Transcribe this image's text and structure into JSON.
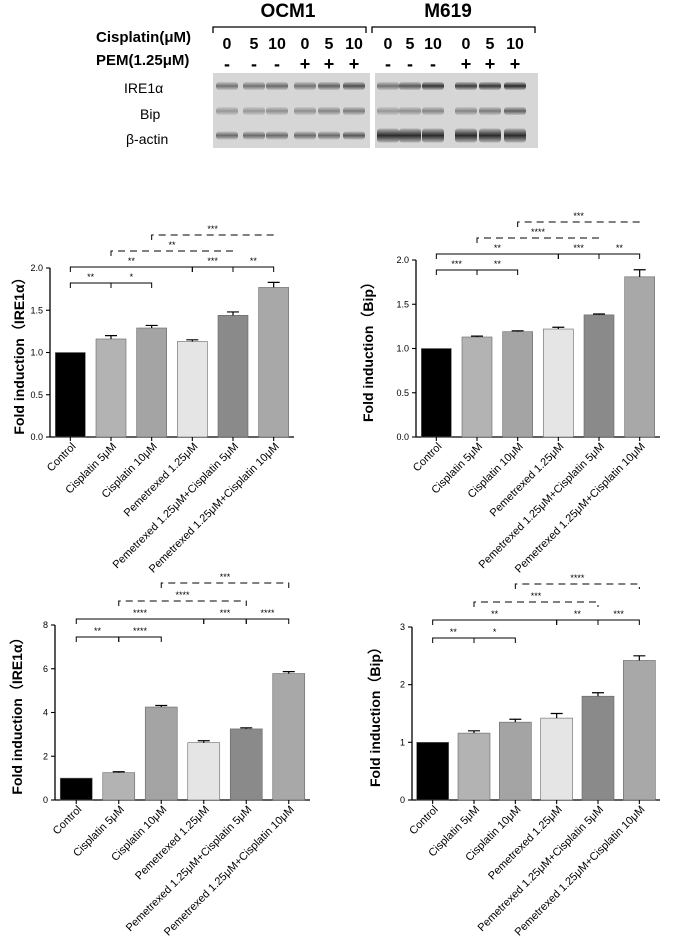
{
  "western_blot": {
    "cell_lines": [
      "OCM1",
      "M619"
    ],
    "cisplatin_label": "Cisplatin(μM)",
    "pem_label": "PEM(1.25μM)",
    "cisplatin_doses": [
      "0",
      "5",
      "10",
      "0",
      "5",
      "10",
      "0",
      "5",
      "10",
      "0",
      "5",
      "10"
    ],
    "pem_marks": [
      "-",
      "-",
      "-",
      "+",
      "+",
      "+",
      "-",
      "-",
      "-",
      "+",
      "+",
      "+"
    ],
    "proteins": [
      "IRE1α",
      "Bip",
      "β-actin"
    ]
  },
  "chart_data": [
    {
      "type": "bar",
      "ylabel": "Fold induction（IRE1α）",
      "ylim": [
        0,
        2.0
      ],
      "yticks": [
        "0.0",
        "0.5",
        "1.0",
        "1.5",
        "2.0"
      ],
      "categories": [
        "Control",
        "Cisplatin 5μM",
        "Cisplatin 10μM",
        "Pemetrexed 1.25μM",
        "Pemetrexed 1.25μM+Cisplatin 5μM",
        "Pemetrexed 1.25μM+Cisplatin 10μM"
      ],
      "values": [
        1.0,
        1.16,
        1.29,
        1.13,
        1.44,
        1.77
      ],
      "errors": [
        0.0,
        0.04,
        0.03,
        0.02,
        0.04,
        0.06
      ],
      "colors": [
        "#000000",
        "#b3b3b3",
        "#a4a4a4",
        "#e5e5e5",
        "#8a8a8a",
        "#a8a8a8"
      ],
      "comparisons": [
        {
          "from": 0,
          "to": 1,
          "label": "**",
          "tier": 0,
          "dashed": false
        },
        {
          "from": 1,
          "to": 2,
          "label": "*",
          "tier": 0,
          "dashed": false
        },
        {
          "from": 0,
          "to": 3,
          "label": "**",
          "tier": 1,
          "dashed": false
        },
        {
          "from": 3,
          "to": 4,
          "label": "***",
          "tier": 1,
          "dashed": false
        },
        {
          "from": 4,
          "to": 5,
          "label": "**",
          "tier": 1,
          "dashed": false
        },
        {
          "from": 1,
          "to": 4,
          "label": "**",
          "tier": 2,
          "dashed": true
        },
        {
          "from": 2,
          "to": 5,
          "label": "***",
          "tier": 3,
          "dashed": true
        }
      ]
    },
    {
      "type": "bar",
      "ylabel": "Fold induction（Bip）",
      "ylim": [
        0,
        2.0
      ],
      "yticks": [
        "0.0",
        "0.5",
        "1.0",
        "1.5",
        "2.0"
      ],
      "categories": [
        "Control",
        "Cisplatin 5μM",
        "Cisplatin 10μM",
        "Pemetrexed 1.25μM",
        "Pemetrexed 1.25μM+Cisplatin 5μM",
        "Pemetrexed 1.25μM+Cisplatin 10μM"
      ],
      "values": [
        1.0,
        1.13,
        1.19,
        1.22,
        1.38,
        1.81
      ],
      "errors": [
        0.0,
        0.01,
        0.01,
        0.02,
        0.01,
        0.08
      ],
      "colors": [
        "#000000",
        "#b3b3b3",
        "#a4a4a4",
        "#e5e5e5",
        "#8a8a8a",
        "#a8a8a8"
      ],
      "comparisons": [
        {
          "from": 0,
          "to": 1,
          "label": "***",
          "tier": 0,
          "dashed": false
        },
        {
          "from": 1,
          "to": 2,
          "label": "**",
          "tier": 0,
          "dashed": false
        },
        {
          "from": 0,
          "to": 3,
          "label": "**",
          "tier": 1,
          "dashed": false
        },
        {
          "from": 3,
          "to": 4,
          "label": "***",
          "tier": 1,
          "dashed": false
        },
        {
          "from": 4,
          "to": 5,
          "label": "**",
          "tier": 1,
          "dashed": false
        },
        {
          "from": 1,
          "to": 4,
          "label": "****",
          "tier": 2,
          "dashed": true
        },
        {
          "from": 2,
          "to": 5,
          "label": "***",
          "tier": 3,
          "dashed": true
        }
      ]
    },
    {
      "type": "bar",
      "ylabel": "Fold induction（IRE1α）",
      "ylim": [
        0,
        8
      ],
      "yticks": [
        "0",
        "2",
        "4",
        "6",
        "8"
      ],
      "categories": [
        "Control",
        "Cisplatin 5μM",
        "Cisplatin 10μM",
        "Pemetrexed 1.25μM",
        "Pemetrexed 1.25μM+Cisplatin 5μM",
        "Pemetrexed 1.25μM+Cisplatin 10μM"
      ],
      "values": [
        1.0,
        1.25,
        4.25,
        2.62,
        3.25,
        5.78
      ],
      "errors": [
        0.0,
        0.04,
        0.07,
        0.09,
        0.05,
        0.09
      ],
      "colors": [
        "#000000",
        "#b3b3b3",
        "#a4a4a4",
        "#e5e5e5",
        "#8a8a8a",
        "#a8a8a8"
      ],
      "comparisons": [
        {
          "from": 0,
          "to": 1,
          "label": "**",
          "tier": 0,
          "dashed": false
        },
        {
          "from": 1,
          "to": 2,
          "label": "****",
          "tier": 0,
          "dashed": false
        },
        {
          "from": 0,
          "to": 3,
          "label": "****",
          "tier": 1,
          "dashed": false
        },
        {
          "from": 3,
          "to": 4,
          "label": "***",
          "tier": 1,
          "dashed": false
        },
        {
          "from": 4,
          "to": 5,
          "label": "****",
          "tier": 1,
          "dashed": false
        },
        {
          "from": 1,
          "to": 4,
          "label": "****",
          "tier": 2,
          "dashed": true
        },
        {
          "from": 2,
          "to": 5,
          "label": "***",
          "tier": 3,
          "dashed": true
        }
      ]
    },
    {
      "type": "bar",
      "ylabel": "Fold induction（Bip）",
      "ylim": [
        0,
        3
      ],
      "yticks": [
        "0",
        "1",
        "2",
        "3"
      ],
      "categories": [
        "Control",
        "Cisplatin 5μM",
        "Cisplatin 10μM",
        "Pemetrexed 1.25μM",
        "Pemetrexed 1.25μM+Cisplatin 5μM",
        "Pemetrexed 1.25μM+Cisplatin 10μM"
      ],
      "values": [
        1.0,
        1.16,
        1.35,
        1.42,
        1.8,
        2.42
      ],
      "errors": [
        0.0,
        0.04,
        0.05,
        0.08,
        0.06,
        0.08
      ],
      "colors": [
        "#000000",
        "#b3b3b3",
        "#a4a4a4",
        "#e5e5e5",
        "#8a8a8a",
        "#a8a8a8"
      ],
      "comparisons": [
        {
          "from": 0,
          "to": 1,
          "label": "**",
          "tier": 0,
          "dashed": false
        },
        {
          "from": 1,
          "to": 2,
          "label": "*",
          "tier": 0,
          "dashed": false
        },
        {
          "from": 0,
          "to": 3,
          "label": "**",
          "tier": 1,
          "dashed": false
        },
        {
          "from": 3,
          "to": 4,
          "label": "**",
          "tier": 1,
          "dashed": false
        },
        {
          "from": 4,
          "to": 5,
          "label": "***",
          "tier": 1,
          "dashed": false
        },
        {
          "from": 1,
          "to": 4,
          "label": "***",
          "tier": 2,
          "dashed": true
        },
        {
          "from": 2,
          "to": 5,
          "label": "****",
          "tier": 3,
          "dashed": true
        }
      ]
    }
  ]
}
